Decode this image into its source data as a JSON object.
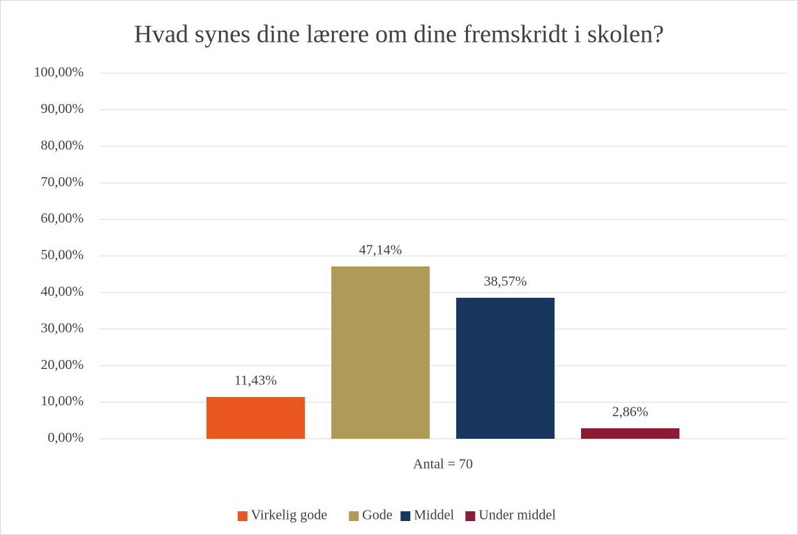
{
  "chart_data": {
    "type": "bar",
    "title": "Hvad synes dine lærere om dine fremskridt i skolen?",
    "categories": [
      "Antal = 70"
    ],
    "series": [
      {
        "name": "Virkelig gode",
        "color": "#e9561f",
        "values": [
          11.43
        ],
        "value_labels": [
          "11,43%"
        ]
      },
      {
        "name": "Gode",
        "color": "#b09a58",
        "values": [
          47.14
        ],
        "value_labels": [
          "47,14%"
        ]
      },
      {
        "name": "Middel",
        "color": "#17375e",
        "values": [
          38.57
        ],
        "value_labels": [
          "38,57%"
        ]
      },
      {
        "name": "Under middel",
        "color": "#8b1a33",
        "values": [
          2.86
        ],
        "value_labels": [
          "2,86%"
        ]
      }
    ],
    "ylim": [
      0,
      100
    ],
    "yticks": [
      {
        "value": 0,
        "label": "0,00%"
      },
      {
        "value": 10,
        "label": "10,00%"
      },
      {
        "value": 20,
        "label": "20,00%"
      },
      {
        "value": 30,
        "label": "30,00%"
      },
      {
        "value": 40,
        "label": "40,00%"
      },
      {
        "value": 50,
        "label": "50,00%"
      },
      {
        "value": 60,
        "label": "60,00%"
      },
      {
        "value": 70,
        "label": "70,00%"
      },
      {
        "value": 80,
        "label": "80,00%"
      },
      {
        "value": 90,
        "label": "90,00%"
      },
      {
        "value": 100,
        "label": "100,00%"
      }
    ],
    "grid": true,
    "legend": "bottom"
  }
}
